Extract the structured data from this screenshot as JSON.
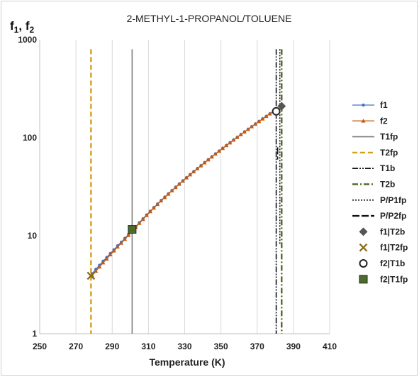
{
  "chart_data": {
    "type": "line",
    "title": "2-METHYL-1-PROPANOL/TOLUENE",
    "ylabel_main": "f",
    "ylabel_subs": [
      "1",
      "2"
    ],
    "ylabel_sep": ", ",
    "xlabel": "Temperature (K)",
    "x_ticks": [
      "250",
      "270",
      "290",
      "310",
      "330",
      "350",
      "370",
      "390",
      "410"
    ],
    "y_ticks": [
      "1",
      "10",
      "100",
      "1000"
    ],
    "xlim": [
      250,
      410
    ],
    "ylim": [
      1,
      1000
    ],
    "yscale": "log",
    "grid": "vertical",
    "legend_position": "right",
    "series": [
      {
        "name": "f1",
        "type": "line",
        "color": "#4472c4",
        "marker": "circle",
        "x": [
          279,
          281,
          283,
          285,
          287,
          289,
          291,
          293,
          295,
          297,
          299,
          301,
          303,
          305,
          307,
          309,
          311,
          313,
          315,
          317,
          319,
          321,
          323,
          325,
          327,
          329,
          331,
          333,
          335,
          337,
          339,
          341,
          343,
          345,
          347,
          349,
          351,
          353,
          355,
          357,
          359,
          361,
          363,
          365,
          367,
          369,
          371,
          373,
          375,
          377,
          379
        ],
        "y": [
          4.1,
          4.55,
          5.0,
          5.5,
          6.0,
          6.6,
          7.2,
          7.9,
          8.6,
          9.4,
          10.3,
          11.3,
          12.4,
          13.6,
          14.9,
          16.3,
          17.8,
          19.4,
          21.1,
          22.9,
          24.8,
          26.8,
          29.0,
          31.3,
          33.8,
          36.4,
          39.2,
          42.1,
          45.2,
          48.5,
          52.0,
          55.8,
          59.8,
          64.0,
          68.5,
          73.2,
          78.2,
          83.5,
          89.1,
          95.0,
          101.2,
          107.8,
          114.8,
          122.2,
          130.0,
          138.2,
          146.9,
          156.0,
          165.6,
          175.7,
          186.3
        ]
      },
      {
        "name": "f2",
        "type": "line",
        "color": "#c55a11",
        "marker": "triangle",
        "x": [
          279,
          281,
          283,
          285,
          287,
          289,
          291,
          293,
          295,
          297,
          299,
          301,
          303,
          305,
          307,
          309,
          311,
          313,
          315,
          317,
          319,
          321,
          323,
          325,
          327,
          329,
          331,
          333,
          335,
          337,
          339,
          341,
          343,
          345,
          347,
          349,
          351,
          353,
          355,
          357,
          359,
          361,
          363,
          365,
          367,
          369,
          371,
          373,
          375,
          377,
          379
        ],
        "y": [
          3.9,
          4.35,
          4.8,
          5.3,
          5.8,
          6.4,
          7.0,
          7.7,
          8.4,
          9.2,
          10.1,
          11.1,
          12.2,
          13.4,
          14.7,
          16.1,
          17.6,
          19.2,
          20.9,
          22.7,
          24.6,
          26.6,
          28.8,
          31.1,
          33.6,
          36.2,
          39.0,
          41.9,
          45.0,
          48.3,
          51.8,
          55.6,
          59.6,
          63.8,
          68.3,
          73.0,
          78.0,
          83.3,
          88.9,
          94.8,
          101.0,
          107.6,
          114.6,
          122.0,
          129.8,
          138.0,
          146.7,
          155.8,
          165.4,
          175.5,
          186.0
        ]
      },
      {
        "name": "T1fp",
        "type": "vline",
        "x": 301,
        "y_range": [
          1,
          800
        ],
        "color": "#7f7f7f",
        "dash": "solid"
      },
      {
        "name": "T2fp",
        "type": "vline",
        "x": 278.3,
        "y_range": [
          1,
          800
        ],
        "color": "#d4a020",
        "dash": "dashed"
      },
      {
        "name": "T1b",
        "type": "vline",
        "x": 380.5,
        "y_range": [
          1,
          800
        ],
        "color": "#111111",
        "dash": "dashdotdot"
      },
      {
        "name": "T2b",
        "type": "vline",
        "x": 383.5,
        "y_range": [
          1,
          800
        ],
        "color": "#4e6b2e",
        "dash": "dashdot"
      },
      {
        "name": "P/P1fp",
        "type": "vline",
        "x": 382.5,
        "y_range": [
          8,
          800
        ],
        "color": "#111111",
        "dash": "dotted"
      },
      {
        "name": "P/P2fp",
        "type": "vline",
        "x": 381.3,
        "y_range": [
          60,
          80
        ],
        "color": "#111111",
        "dash": "longdash"
      },
      {
        "name": "f1|T2b",
        "type": "point",
        "x": 383.5,
        "y": 210,
        "marker": "diamond",
        "color": "#555555"
      },
      {
        "name": "f1|T2fp",
        "type": "point",
        "x": 278.3,
        "y": 3.9,
        "marker": "x",
        "color": "#8a6d1c"
      },
      {
        "name": "f2|T1b",
        "type": "point",
        "x": 380.5,
        "y": 186,
        "marker": "open-circle",
        "color": "#222222"
      },
      {
        "name": "f2|T1fp",
        "type": "point",
        "x": 301,
        "y": 11.6,
        "marker": "square",
        "color": "#4e6b2e"
      }
    ]
  }
}
